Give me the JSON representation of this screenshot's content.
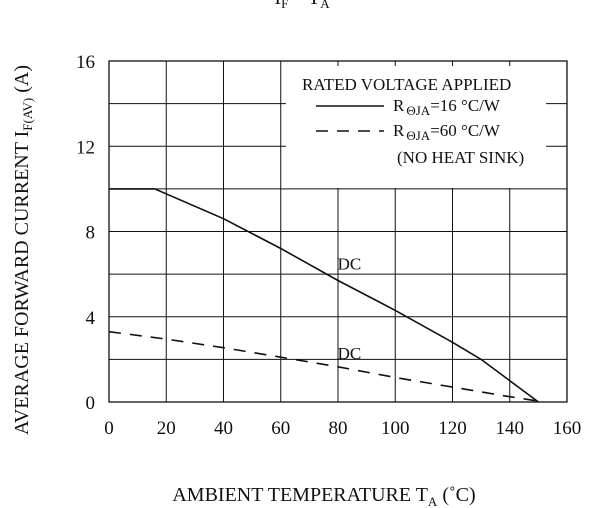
{
  "chart_data": {
    "type": "line",
    "title": "I_F - T_A",
    "title_parts": {
      "main": "I",
      "main_sub": "F",
      "sep": " – ",
      "main2": "T",
      "main2_sub": "A"
    },
    "xlabel": "AMBIENT TEMPERATURE  T_A (˚C)",
    "xlabel_parts": {
      "main": "AMBIENT TEMPERATURE  T",
      "sub": "A",
      "unit": " (˚C)"
    },
    "ylabel": "AVERAGE FORWARD CURRENT  I_F(AV) (A)",
    "ylabel_parts": {
      "main": "AVERAGE FORWARD CURRENT  I",
      "sub": "F(AV)",
      "unit": " (A)"
    },
    "xlim": [
      0,
      160
    ],
    "ylim": [
      0,
      16
    ],
    "x_ticks": [
      "0",
      "20",
      "40",
      "60",
      "80",
      "100",
      "120",
      "140",
      "160"
    ],
    "y_ticks": [
      "0",
      "4",
      "8",
      "12",
      "16"
    ],
    "grid": true,
    "grid_x_step": 20,
    "grid_y_step": 2,
    "legend": {
      "placement": "top-right",
      "header": "RATED VOLTAGE APPLIED",
      "note": "(NO HEAT SINK)",
      "entries": [
        {
          "prefix": "R",
          "sub": "ΘJA",
          "suffix": "=16 °C/W",
          "dash": "solid"
        },
        {
          "prefix": "R",
          "sub": "ΘJA",
          "suffix": "=60 °C/W",
          "dash": "dashed"
        }
      ]
    },
    "series": [
      {
        "name": "RΘJA=16 °C/W",
        "style": "solid",
        "label": "DC",
        "label_at": [
          84,
          6.5
        ],
        "points": [
          [
            0,
            10
          ],
          [
            16,
            10
          ],
          [
            40,
            8.6
          ],
          [
            60,
            7.2
          ],
          [
            80,
            5.7
          ],
          [
            100,
            4.3
          ],
          [
            120,
            2.8
          ],
          [
            130,
            2.0
          ],
          [
            140,
            1.0
          ],
          [
            150,
            0
          ]
        ]
      },
      {
        "name": "RΘJA=60 °C/W",
        "style": "dashed",
        "label": "DC",
        "label_at": [
          84,
          2.3
        ],
        "points": [
          [
            0,
            3.3
          ],
          [
            20,
            2.95
          ],
          [
            40,
            2.55
          ],
          [
            60,
            2.1
          ],
          [
            80,
            1.65
          ],
          [
            100,
            1.15
          ],
          [
            120,
            0.7
          ],
          [
            140,
            0.25
          ],
          [
            152,
            0
          ]
        ]
      }
    ]
  }
}
